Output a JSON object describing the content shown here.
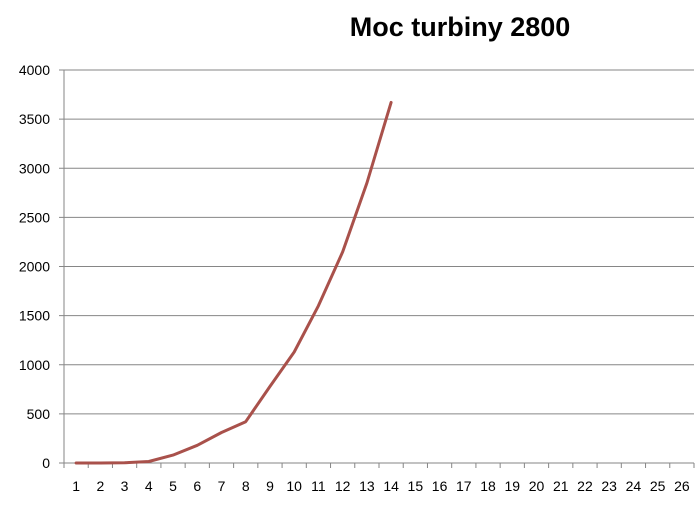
{
  "chart_data": {
    "type": "line",
    "title": "Moc turbiny 2800",
    "xlabel": "",
    "ylabel": "",
    "categories": [
      "1",
      "2",
      "3",
      "4",
      "5",
      "6",
      "7",
      "8",
      "9",
      "10",
      "11",
      "12",
      "13",
      "14",
      "15",
      "16",
      "17",
      "18",
      "19",
      "20",
      "21",
      "22",
      "23",
      "24",
      "25",
      "26"
    ],
    "series": [
      {
        "color": "#a9514b",
        "values": [
          0,
          0,
          2,
          15,
          80,
          180,
          310,
          420,
          780,
          1130,
          1600,
          2150,
          2850,
          3670,
          null,
          null,
          null,
          null,
          null,
          null,
          null,
          null,
          null,
          null,
          null,
          null
        ]
      }
    ],
    "ylim": [
      0,
      4000
    ],
    "yticks": [
      0,
      500,
      1000,
      1500,
      2000,
      2500,
      3000,
      3500,
      4000
    ],
    "grid": "horizontal",
    "legend": "none"
  }
}
